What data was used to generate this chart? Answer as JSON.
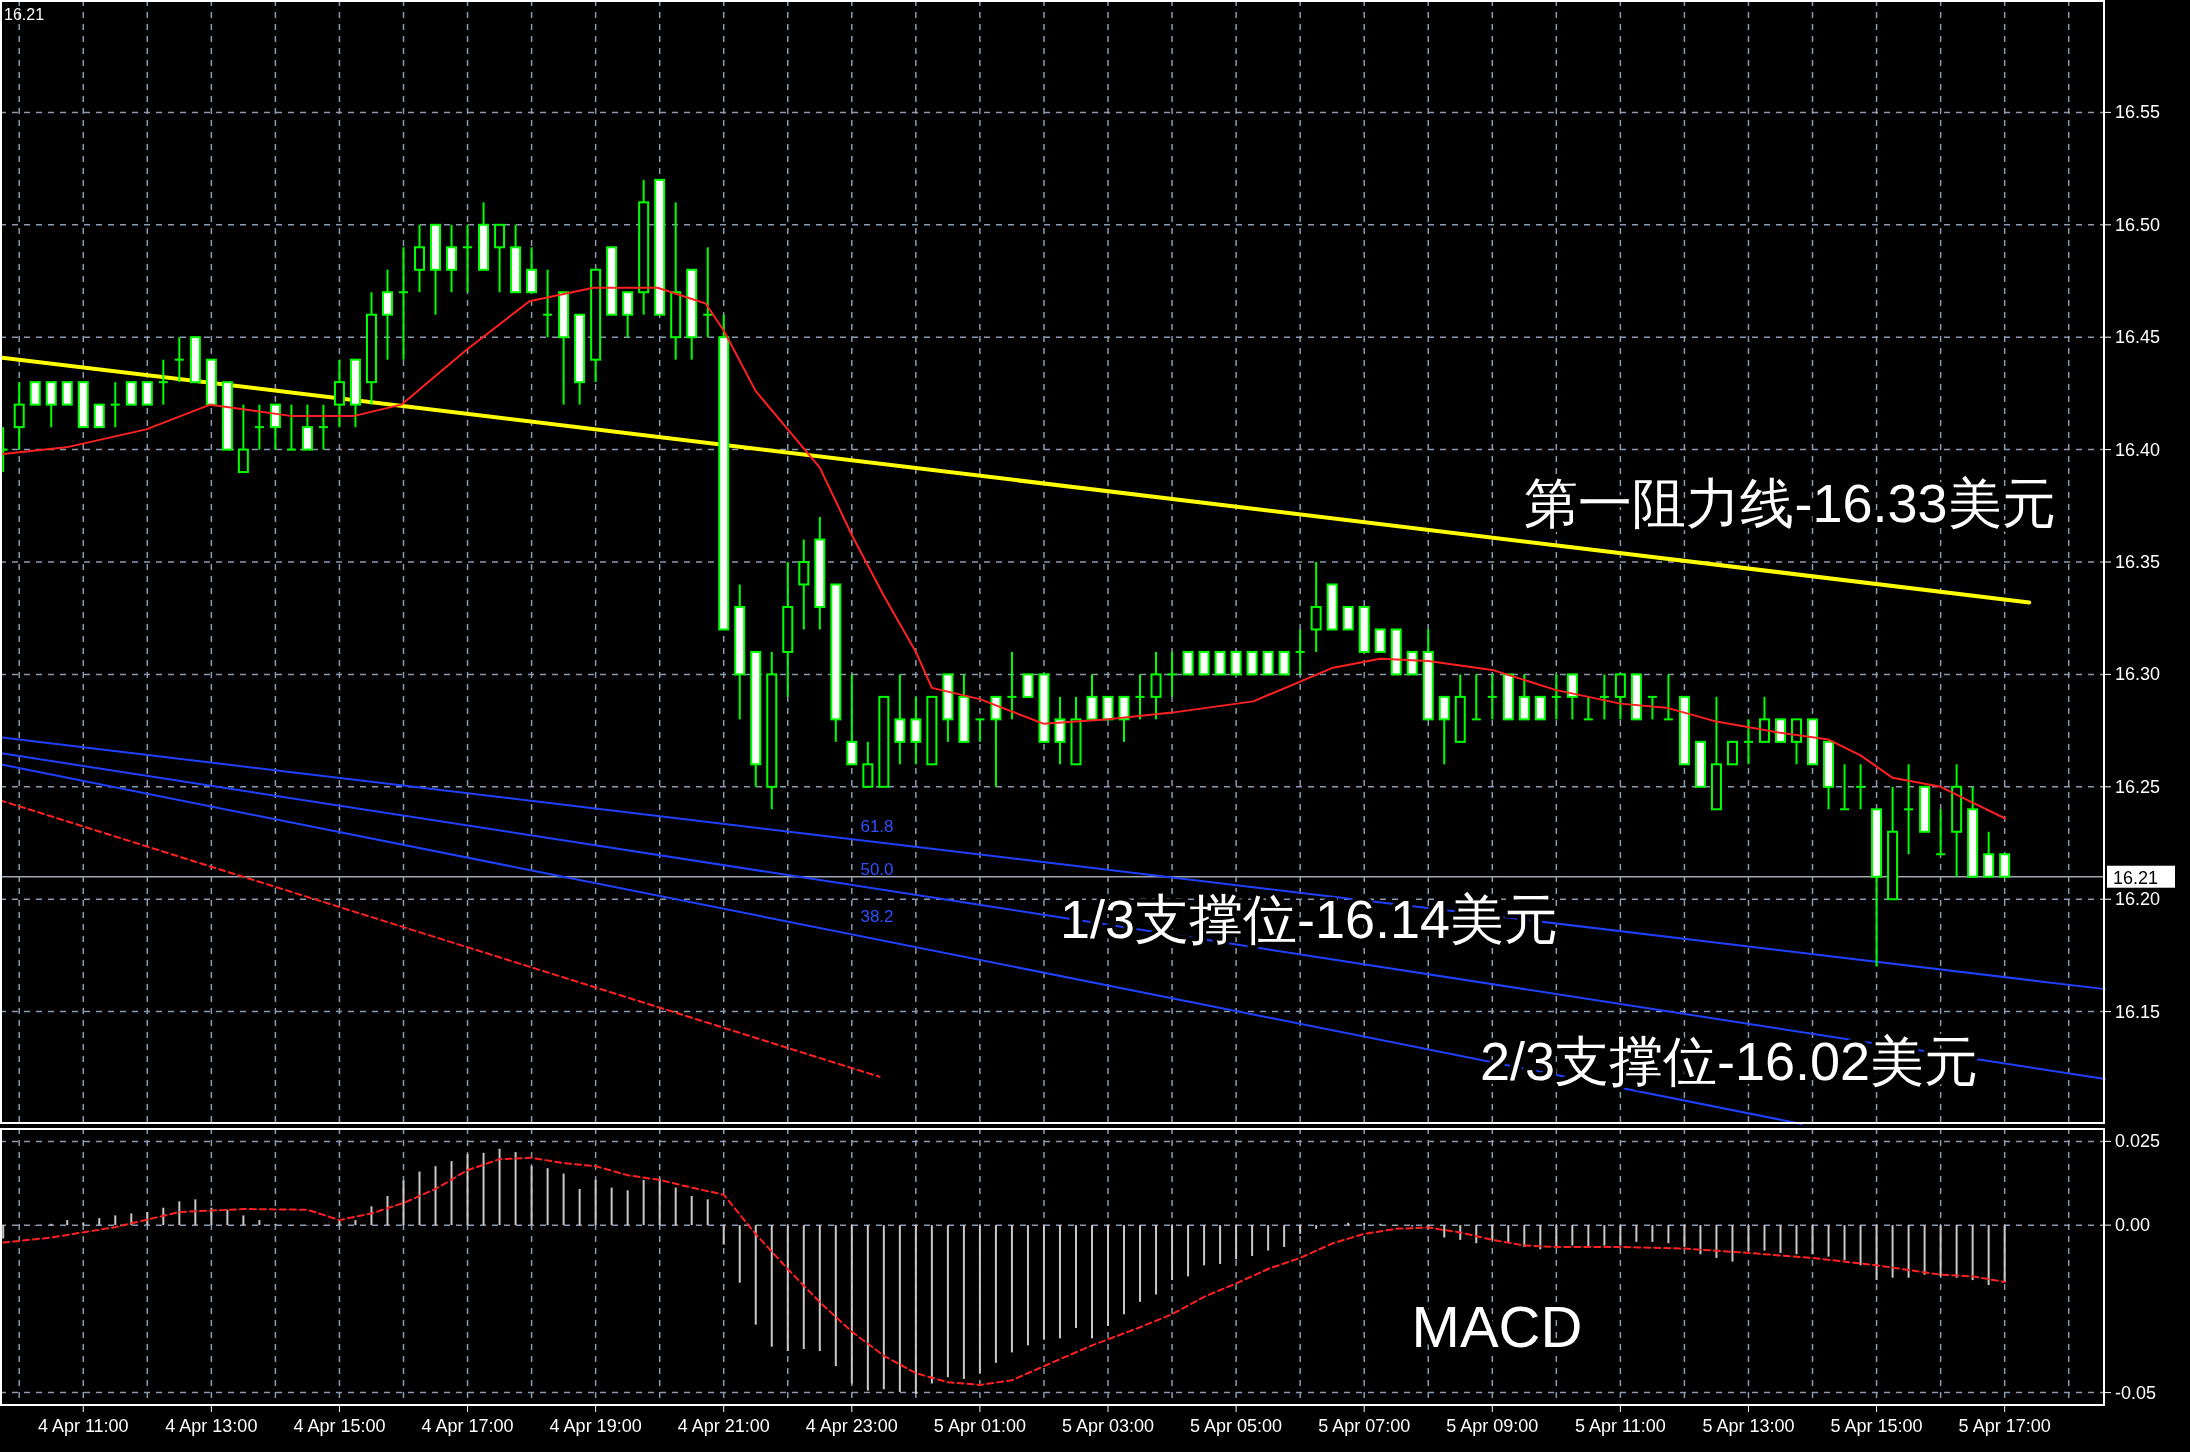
{
  "chart_data": [
    {
      "type": "candlestick",
      "tick_labels": "y",
      "grid": true,
      "xlim": [
        "--04-04T09:42",
        "--04-05T18:34"
      ],
      "ylim": [
        16.1,
        16.6
      ],
      "xticks": [
        "--04-04T10:00",
        "--04-04T11:00",
        "--04-04T12:00",
        "--04-04T13:00",
        "--04-04T14:00",
        "--04-04T15:00",
        "--04-04T16:00",
        "--04-04T17:00",
        "--04-04T18:00",
        "--04-04T19:00",
        "--04-04T20:00",
        "--04-04T21:00",
        "--04-04T22:00",
        "--04-04T23:00",
        "--04-05T00:00",
        "--04-05T01:00",
        "--04-05T02:00",
        "--04-05T03:00",
        "--04-05T04:00",
        "--04-05T05:00",
        "--04-05T06:00",
        "--04-05T07:00",
        "--04-05T08:00",
        "--04-05T09:00",
        "--04-05T10:00",
        "--04-05T11:00",
        "--04-05T12:00",
        "--04-05T13:00",
        "--04-05T14:00",
        "--04-05T15:00",
        "--04-05T16:00",
        "--04-05T17:00",
        "--04-05T18:00"
      ],
      "yticks": [
        16.15,
        {
          "value": 16.2,
          "label": "16.20"
        },
        16.25,
        {
          "value": 16.3,
          "label": "16.30"
        },
        16.35,
        {
          "value": 16.4,
          "label": "16.40"
        },
        16.45,
        {
          "value": 16.5,
          "label": "16.50"
        },
        16.55
      ],
      "x": [
        "--04-04T09:45",
        "--04-04T10:00",
        "--04-04T10:15",
        "--04-04T10:30",
        "--04-04T10:45",
        "--04-04T11:00",
        "--04-04T11:15",
        "--04-04T11:30",
        "--04-04T11:45",
        "--04-04T12:00",
        "--04-04T12:15",
        "--04-04T12:30",
        "--04-04T12:45",
        "--04-04T13:00",
        "--04-04T13:15",
        "--04-04T13:30",
        "--04-04T13:45",
        "--04-04T14:00",
        "--04-04T14:15",
        "--04-04T14:30",
        "--04-04T14:45",
        "--04-04T15:00",
        "--04-04T15:15",
        "--04-04T15:30",
        "--04-04T15:45",
        "--04-04T16:00",
        "--04-04T16:15",
        "--04-04T16:30",
        "--04-04T16:45",
        "--04-04T17:00",
        "--04-04T17:15",
        "--04-04T17:30",
        "--04-04T17:45",
        "--04-04T18:00",
        "--04-04T18:15",
        "--04-04T18:30",
        "--04-04T18:45",
        "--04-04T19:00",
        "--04-04T19:15",
        "--04-04T19:30",
        "--04-04T19:45",
        "--04-04T20:00",
        "--04-04T20:15",
        "--04-04T20:30",
        "--04-04T20:45",
        "--04-04T21:00",
        "--04-04T21:15",
        "--04-04T21:30",
        "--04-04T21:45",
        "--04-04T22:00",
        "--04-04T22:15",
        "--04-04T22:30",
        "--04-04T22:45",
        "--04-04T23:00",
        "--04-04T23:15",
        "--04-04T23:30",
        "--04-04T23:45",
        "--04-05T00:00",
        "--04-05T00:15",
        "--04-05T00:30",
        "--04-05T00:45",
        "--04-05T01:00",
        "--04-05T01:15",
        "--04-05T01:30",
        "--04-05T01:45",
        "--04-05T02:00",
        "--04-05T02:15",
        "--04-05T02:30",
        "--04-05T02:45",
        "--04-05T03:00",
        "--04-05T03:15",
        "--04-05T03:30",
        "--04-05T03:45",
        "--04-05T04:00",
        "--04-05T04:15",
        "--04-05T04:30",
        "--04-05T04:45",
        "--04-05T05:00",
        "--04-05T05:15",
        "--04-05T05:30",
        "--04-05T05:45",
        "--04-05T06:00",
        "--04-05T06:15",
        "--04-05T06:30",
        "--04-05T06:45",
        "--04-05T07:00",
        "--04-05T07:15",
        "--04-05T07:30",
        "--04-05T07:45",
        "--04-05T08:00",
        "--04-05T08:15",
        "--04-05T08:30",
        "--04-05T08:45",
        "--04-05T09:00",
        "--04-05T09:15",
        "--04-05T09:30",
        "--04-05T09:45",
        "--04-05T10:00",
        "--04-05T10:15",
        "--04-05T10:30",
        "--04-05T10:45",
        "--04-05T11:00",
        "--04-05T11:15",
        "--04-05T11:30",
        "--04-05T11:45",
        "--04-05T12:00",
        "--04-05T12:15",
        "--04-05T12:30",
        "--04-05T12:45",
        "--04-05T13:00",
        "--04-05T13:15",
        "--04-05T13:30",
        "--04-05T13:45",
        "--04-05T14:00",
        "--04-05T14:15",
        "--04-05T14:30",
        "--04-05T14:45",
        "--04-05T15:00",
        "--04-05T15:15",
        "--04-05T15:30",
        "--04-05T15:45",
        "--04-05T16:00",
        "--04-05T16:15",
        "--04-05T16:30",
        "--04-05T16:45",
        "--04-05T17:00"
      ],
      "ohlc": [
        [
          16.4,
          16.41,
          16.39,
          16.4
        ],
        [
          16.41,
          16.43,
          16.4,
          16.42
        ],
        [
          16.43,
          16.43,
          16.42,
          16.42
        ],
        [
          16.43,
          16.43,
          16.41,
          16.42
        ],
        [
          16.43,
          16.43,
          16.42,
          16.42
        ],
        [
          16.43,
          16.43,
          16.41,
          16.41
        ],
        [
          16.42,
          16.42,
          16.41,
          16.41
        ],
        [
          16.42,
          16.43,
          16.41,
          16.42
        ],
        [
          16.43,
          16.43,
          16.42,
          16.42
        ],
        [
          16.43,
          16.43,
          16.42,
          16.42
        ],
        [
          16.43,
          16.44,
          16.42,
          16.43
        ],
        [
          16.44,
          16.45,
          16.43,
          16.44
        ],
        [
          16.45,
          16.45,
          16.43,
          16.43
        ],
        [
          16.44,
          16.44,
          16.42,
          16.42
        ],
        [
          16.43,
          16.43,
          16.4,
          16.4
        ],
        [
          16.39,
          16.42,
          16.39,
          16.4
        ],
        [
          16.41,
          16.42,
          16.4,
          16.41
        ],
        [
          16.42,
          16.42,
          16.4,
          16.41
        ],
        [
          16.4,
          16.42,
          16.4,
          16.4
        ],
        [
          16.41,
          16.42,
          16.4,
          16.4
        ],
        [
          16.41,
          16.42,
          16.4,
          16.41
        ],
        [
          16.42,
          16.44,
          16.41,
          16.43
        ],
        [
          16.44,
          16.44,
          16.41,
          16.42
        ],
        [
          16.43,
          16.47,
          16.42,
          16.46
        ],
        [
          16.47,
          16.48,
          16.44,
          16.46
        ],
        [
          16.47,
          16.49,
          16.44,
          16.47
        ],
        [
          16.48,
          16.5,
          16.47,
          16.49
        ],
        [
          16.5,
          16.5,
          16.46,
          16.48
        ],
        [
          16.49,
          16.5,
          16.47,
          16.48
        ],
        [
          16.49,
          16.5,
          16.47,
          16.49
        ],
        [
          16.5,
          16.51,
          16.48,
          16.48
        ],
        [
          16.49,
          16.5,
          16.47,
          16.5
        ],
        [
          16.49,
          16.5,
          16.47,
          16.47
        ],
        [
          16.48,
          16.49,
          16.47,
          16.47
        ],
        [
          16.46,
          16.48,
          16.45,
          16.46
        ],
        [
          16.47,
          16.47,
          16.42,
          16.45
        ],
        [
          16.46,
          16.46,
          16.42,
          16.43
        ],
        [
          16.44,
          16.48,
          16.43,
          16.48
        ],
        [
          16.49,
          16.49,
          16.46,
          16.46
        ],
        [
          16.47,
          16.47,
          16.45,
          16.46
        ],
        [
          16.47,
          16.52,
          16.46,
          16.51
        ],
        [
          16.52,
          16.52,
          16.46,
          16.46
        ],
        [
          16.45,
          16.51,
          16.44,
          16.47
        ],
        [
          16.48,
          16.48,
          16.44,
          16.45
        ],
        [
          16.46,
          16.49,
          16.45,
          16.46
        ],
        [
          16.45,
          16.46,
          16.32,
          16.32
        ],
        [
          16.33,
          16.34,
          16.28,
          16.3
        ],
        [
          16.31,
          16.31,
          16.25,
          16.26
        ],
        [
          16.25,
          16.31,
          16.24,
          16.3
        ],
        [
          16.31,
          16.35,
          16.29,
          16.33
        ],
        [
          16.34,
          16.36,
          16.32,
          16.35
        ],
        [
          16.36,
          16.37,
          16.32,
          16.33
        ],
        [
          16.34,
          16.34,
          16.27,
          16.28
        ],
        [
          16.27,
          16.3,
          16.26,
          16.26
        ],
        [
          16.25,
          16.27,
          16.25,
          16.26
        ],
        [
          16.25,
          16.29,
          16.25,
          16.29
        ],
        [
          16.28,
          16.3,
          16.26,
          16.27
        ],
        [
          16.28,
          16.29,
          16.26,
          16.27
        ],
        [
          16.26,
          16.29,
          16.26,
          16.29
        ],
        [
          16.3,
          16.3,
          16.27,
          16.28
        ],
        [
          16.29,
          16.3,
          16.27,
          16.27
        ],
        [
          16.28,
          16.28,
          16.27,
          16.28
        ],
        [
          16.29,
          16.29,
          16.25,
          16.28
        ],
        [
          16.29,
          16.31,
          16.28,
          16.29
        ],
        [
          16.3,
          16.3,
          16.29,
          16.29
        ],
        [
          16.3,
          16.3,
          16.27,
          16.27
        ],
        [
          16.28,
          16.29,
          16.26,
          16.27
        ],
        [
          16.26,
          16.29,
          16.26,
          16.28
        ],
        [
          16.29,
          16.3,
          16.28,
          16.28
        ],
        [
          16.29,
          16.29,
          16.28,
          16.28
        ],
        [
          16.29,
          16.29,
          16.27,
          16.28
        ],
        [
          16.29,
          16.3,
          16.28,
          16.29
        ],
        [
          16.29,
          16.31,
          16.28,
          16.3
        ],
        [
          16.3,
          16.31,
          16.29,
          16.3
        ],
        [
          16.31,
          16.31,
          16.3,
          16.3
        ],
        [
          16.31,
          16.31,
          16.3,
          16.3
        ],
        [
          16.31,
          16.31,
          16.3,
          16.3
        ],
        [
          16.31,
          16.31,
          16.3,
          16.3
        ],
        [
          16.31,
          16.31,
          16.3,
          16.3
        ],
        [
          16.31,
          16.31,
          16.3,
          16.3
        ],
        [
          16.31,
          16.31,
          16.3,
          16.3
        ],
        [
          16.31,
          16.32,
          16.3,
          16.31
        ],
        [
          16.32,
          16.35,
          16.31,
          16.33
        ],
        [
          16.34,
          16.34,
          16.32,
          16.32
        ],
        [
          16.33,
          16.33,
          16.32,
          16.32
        ],
        [
          16.33,
          16.33,
          16.31,
          16.31
        ],
        [
          16.32,
          16.32,
          16.31,
          16.31
        ],
        [
          16.32,
          16.32,
          16.3,
          16.3
        ],
        [
          16.31,
          16.31,
          16.3,
          16.3
        ],
        [
          16.31,
          16.32,
          16.28,
          16.28
        ],
        [
          16.29,
          16.29,
          16.26,
          16.28
        ],
        [
          16.27,
          16.3,
          16.27,
          16.29
        ],
        [
          16.28,
          16.3,
          16.28,
          16.28
        ],
        [
          16.29,
          16.3,
          16.28,
          16.29
        ],
        [
          16.3,
          16.3,
          16.28,
          16.28
        ],
        [
          16.29,
          16.3,
          16.28,
          16.28
        ],
        [
          16.29,
          16.29,
          16.28,
          16.28
        ],
        [
          16.29,
          16.3,
          16.28,
          16.29
        ],
        [
          16.3,
          16.3,
          16.28,
          16.29
        ],
        [
          16.28,
          16.29,
          16.28,
          16.28
        ],
        [
          16.29,
          16.3,
          16.28,
          16.29
        ],
        [
          16.29,
          16.3,
          16.28,
          16.3
        ],
        [
          16.3,
          16.3,
          16.28,
          16.28
        ],
        [
          16.29,
          16.29,
          16.28,
          16.29
        ],
        [
          16.28,
          16.3,
          16.28,
          16.28
        ],
        [
          16.29,
          16.29,
          16.26,
          16.26
        ],
        [
          16.27,
          16.27,
          16.25,
          16.25
        ],
        [
          16.24,
          16.29,
          16.24,
          16.26
        ],
        [
          16.26,
          16.27,
          16.26,
          16.27
        ],
        [
          16.27,
          16.28,
          16.26,
          16.27
        ],
        [
          16.27,
          16.29,
          16.27,
          16.28
        ],
        [
          16.28,
          16.28,
          16.27,
          16.27
        ],
        [
          16.27,
          16.28,
          16.26,
          16.28
        ],
        [
          16.28,
          16.28,
          16.26,
          16.26
        ],
        [
          16.27,
          16.27,
          16.24,
          16.25
        ],
        [
          16.24,
          16.26,
          16.24,
          16.24
        ],
        [
          16.25,
          16.26,
          16.24,
          16.25
        ],
        [
          16.24,
          16.24,
          16.17,
          16.21
        ],
        [
          16.2,
          16.25,
          16.2,
          16.23
        ],
        [
          16.24,
          16.26,
          16.22,
          16.24
        ],
        [
          16.25,
          16.25,
          16.23,
          16.23
        ],
        [
          16.22,
          16.24,
          16.22,
          16.22
        ],
        [
          16.23,
          16.26,
          16.21,
          16.25
        ],
        [
          16.24,
          16.25,
          16.21,
          16.21
        ],
        [
          16.22,
          16.23,
          16.21,
          16.21
        ],
        [
          16.22,
          16.22,
          16.21,
          16.21
        ]
      ],
      "series": [
        {
          "type": "line",
          "color": "#ff2020",
          "x": [
            "--04-04T09:45",
            "--04-04T10:44",
            "--04-04T11:59",
            "--04-04T12:59",
            "--04-04T14:14",
            "--04-04T15:14",
            "--04-04T15:58",
            "--04-04T16:58",
            "--04-04T17:58",
            "--04-04T18:58",
            "--04-04T19:58",
            "--04-04T20:43",
            "--04-04T21:00",
            "--04-04T21:30",
            "--04-04T22:00",
            "--04-04T22:30",
            "--04-04T23:00",
            "--04-04T23:30",
            "--04-05T00:00",
            "--04-05T00:15",
            "--04-05T01:00",
            "--04-05T02:00",
            "--04-05T03:00",
            "--04-05T04:00",
            "--04-05T05:16",
            "--04-05T06:31",
            "--04-05T07:15",
            "--04-05T08:00",
            "--04-05T09:00",
            "--04-05T10:00",
            "--04-05T11:00",
            "--04-05T11:45",
            "--04-05T12:30",
            "--04-05T13:30",
            "--04-05T14:15",
            "--04-05T14:45",
            "--04-05T15:15",
            "--04-05T16:00",
            "--04-05T16:30",
            "--04-05T17:00"
          ],
          "values": [
            16.398,
            16.401,
            16.409,
            16.42,
            16.415,
            16.415,
            16.42,
            16.444,
            16.466,
            16.472,
            16.472,
            16.465,
            16.453,
            16.426,
            16.409,
            16.392,
            16.362,
            16.335,
            16.31,
            16.294,
            16.289,
            16.278,
            16.28,
            16.283,
            16.288,
            16.303,
            16.307,
            16.306,
            16.302,
            16.293,
            16.287,
            16.285,
            16.279,
            16.274,
            16.271,
            16.264,
            16.254,
            16.25,
            16.243,
            16.236
          ]
        },
        {
          "type": "line",
          "color": "#ffff00",
          "x": [
            "--04-04T09:42",
            "--04-05T17:23"
          ],
          "values": [
            16.441,
            16.332
          ]
        },
        {
          "type": "line",
          "color": "#2040ff",
          "x": [
            "--04-04T09:42",
            "--04-05T18:34"
          ],
          "values": [
            16.272,
            16.16
          ]
        },
        {
          "type": "line",
          "color": "#2040ff",
          "x": [
            "--04-04T09:42",
            "--04-05T18:34"
          ],
          "values": [
            16.265,
            16.12
          ]
        },
        {
          "type": "line",
          "color": "#2040ff",
          "x": [
            "--04-04T09:42",
            "--04-05T13:50"
          ],
          "values": [
            16.26,
            16.1
          ]
        },
        {
          "type": "line",
          "color": "#ff2020",
          "line_style": "dashed",
          "x": [
            "--04-04T09:42",
            "--04-04T23:26"
          ],
          "values": [
            16.244,
            16.121
          ]
        }
      ],
      "ref_lines": [
        {
          "axis": "y",
          "value": 16.21,
          "label": "16.21",
          "color": "#a0a8b0"
        }
      ],
      "annotations": [
        "16.21",
        "第一阻力线-16.33美元",
        "1/3支撑位-16.14美元",
        "2/3支撑位-16.02美元",
        "61.8",
        "50.0",
        "38.2"
      ]
    },
    {
      "type": "bar",
      "grid": true,
      "xlim": [
        "--04-04T09:42",
        "--04-05T18:34"
      ],
      "ylim": [
        -0.054,
        0.029
      ],
      "xticks": [
        {
          "value": "--04-04T10:00",
          "label": null
        },
        {
          "value": "--04-04T11:00",
          "label": "4 Apr 11:00"
        },
        {
          "value": "--04-04T12:00",
          "label": null
        },
        {
          "value": "--04-04T13:00",
          "label": "4 Apr 13:00"
        },
        {
          "value": "--04-04T14:00",
          "label": null
        },
        {
          "value": "--04-04T15:00",
          "label": "4 Apr 15:00"
        },
        {
          "value": "--04-04T16:00",
          "label": null
        },
        {
          "value": "--04-04T17:00",
          "label": "4 Apr 17:00"
        },
        {
          "value": "--04-04T18:00",
          "label": null
        },
        {
          "value": "--04-04T19:00",
          "label": "4 Apr 19:00"
        },
        {
          "value": "--04-04T20:00",
          "label": null
        },
        {
          "value": "--04-04T21:00",
          "label": "4 Apr 21:00"
        },
        {
          "value": "--04-04T22:00",
          "label": null
        },
        {
          "value": "--04-04T23:00",
          "label": "4 Apr 23:00"
        },
        {
          "value": "--04-05T00:00",
          "label": null
        },
        {
          "value": "--04-05T01:00",
          "label": "5 Apr 01:00"
        },
        {
          "value": "--04-05T02:00",
          "label": null
        },
        {
          "value": "--04-05T03:00",
          "label": "5 Apr 03:00"
        },
        {
          "value": "--04-05T04:00",
          "label": null
        },
        {
          "value": "--04-05T05:00",
          "label": "5 Apr 05:00"
        },
        {
          "value": "--04-05T06:00",
          "label": null
        },
        {
          "value": "--04-05T07:00",
          "label": "5 Apr 07:00"
        },
        {
          "value": "--04-05T08:00",
          "label": null
        },
        {
          "value": "--04-05T09:00",
          "label": "5 Apr 09:00"
        },
        {
          "value": "--04-05T10:00",
          "label": null
        },
        {
          "value": "--04-05T11:00",
          "label": "5 Apr 11:00"
        },
        {
          "value": "--04-05T12:00",
          "label": null
        },
        {
          "value": "--04-05T13:00",
          "label": "5 Apr 13:00"
        },
        {
          "value": "--04-05T14:00",
          "label": null
        },
        {
          "value": "--04-05T15:00",
          "label": "5 Apr 15:00"
        },
        {
          "value": "--04-05T16:00",
          "label": null
        },
        {
          "value": "--04-05T17:00",
          "label": "5 Apr 17:00"
        },
        {
          "value": "--04-05T18:00",
          "label": null
        }
      ],
      "yticks": [
        -0.05,
        {
          "value": 0,
          "label": "0.00"
        },
        0.025
      ],
      "x": [
        "--04-04T09:45",
        "--04-04T10:00",
        "--04-04T10:15",
        "--04-04T10:30",
        "--04-04T10:45",
        "--04-04T11:00",
        "--04-04T11:15",
        "--04-04T11:30",
        "--04-04T11:45",
        "--04-04T12:00",
        "--04-04T12:15",
        "--04-04T12:30",
        "--04-04T12:45",
        "--04-04T13:00",
        "--04-04T13:15",
        "--04-04T13:30",
        "--04-04T13:45",
        "--04-04T14:00",
        "--04-04T14:15",
        "--04-04T14:30",
        "--04-04T14:45",
        "--04-04T15:00",
        "--04-04T15:15",
        "--04-04T15:30",
        "--04-04T15:45",
        "--04-04T16:00",
        "--04-04T16:15",
        "--04-04T16:30",
        "--04-04T16:45",
        "--04-04T17:00",
        "--04-04T17:15",
        "--04-04T17:30",
        "--04-04T17:45",
        "--04-04T18:00",
        "--04-04T18:15",
        "--04-04T18:30",
        "--04-04T18:45",
        "--04-04T19:00",
        "--04-04T19:15",
        "--04-04T19:30",
        "--04-04T19:45",
        "--04-04T20:00",
        "--04-04T20:15",
        "--04-04T20:30",
        "--04-04T20:45",
        "--04-04T21:00",
        "--04-04T21:15",
        "--04-04T21:30",
        "--04-04T21:45",
        "--04-04T22:00",
        "--04-04T22:15",
        "--04-04T22:30",
        "--04-04T22:45",
        "--04-04T23:00",
        "--04-04T23:15",
        "--04-04T23:30",
        "--04-04T23:45",
        "--04-05T00:00",
        "--04-05T00:15",
        "--04-05T00:30",
        "--04-05T00:45",
        "--04-05T01:00",
        "--04-05T01:15",
        "--04-05T01:30",
        "--04-05T01:45",
        "--04-05T02:00",
        "--04-05T02:15",
        "--04-05T02:30",
        "--04-05T02:45",
        "--04-05T03:00",
        "--04-05T03:15",
        "--04-05T03:30",
        "--04-05T03:45",
        "--04-05T04:00",
        "--04-05T04:15",
        "--04-05T04:30",
        "--04-05T04:45",
        "--04-05T05:00",
        "--04-05T05:15",
        "--04-05T05:30",
        "--04-05T05:45",
        "--04-05T06:00",
        "--04-05T06:15",
        "--04-05T06:30",
        "--04-05T06:45",
        "--04-05T07:00",
        "--04-05T07:15",
        "--04-05T07:30",
        "--04-05T07:45",
        "--04-05T08:00",
        "--04-05T08:15",
        "--04-05T08:30",
        "--04-05T08:45",
        "--04-05T09:00",
        "--04-05T09:15",
        "--04-05T09:30",
        "--04-05T09:45",
        "--04-05T10:00",
        "--04-05T10:15",
        "--04-05T10:30",
        "--04-05T10:45",
        "--04-05T11:00",
        "--04-05T11:15",
        "--04-05T11:30",
        "--04-05T11:45",
        "--04-05T12:00",
        "--04-05T12:15",
        "--04-05T12:30",
        "--04-05T12:45",
        "--04-05T13:00",
        "--04-05T13:15",
        "--04-05T13:30",
        "--04-05T13:45",
        "--04-05T14:00",
        "--04-05T14:15",
        "--04-05T14:30",
        "--04-05T14:45",
        "--04-05T15:00",
        "--04-05T15:15",
        "--04-05T15:30",
        "--04-05T15:45",
        "--04-05T16:00",
        "--04-05T16:15",
        "--04-05T16:30",
        "--04-05T16:45",
        "--04-05T17:00"
      ],
      "series": [
        {
          "type": "bar",
          "color": "#c8c8c8",
          "values": [
            -0.004,
            0,
            0,
            0.0004,
            0.0015,
            0.0008,
            0.0021,
            0.0029,
            0.0035,
            0.0039,
            0.0052,
            0.0071,
            0.0077,
            0.0052,
            0.0046,
            0.0029,
            0.0015,
            0.0004,
            0,
            0,
            0,
            0.0015,
            0.0015,
            0.0056,
            0.0087,
            0.0133,
            0.016,
            0.0176,
            0.0191,
            0.0212,
            0.0216,
            0.0228,
            0.0218,
            0.0176,
            0.017,
            0.0154,
            0.0108,
            0.0135,
            0.0112,
            0.0104,
            0.0135,
            0.0139,
            0.0112,
            0.0087,
            0.0077,
            -0.0058,
            -0.0172,
            -0.0297,
            -0.0363,
            -0.0376,
            -0.037,
            -0.0376,
            -0.0421,
            -0.0473,
            -0.0494,
            -0.049,
            -0.0498,
            -0.0504,
            -0.0473,
            -0.0454,
            -0.0459,
            -0.0442,
            -0.0411,
            -0.038,
            -0.0359,
            -0.0342,
            -0.0338,
            -0.0307,
            -0.0338,
            -0.0301,
            -0.0266,
            -0.0229,
            -0.0207,
            -0.0164,
            -0.0153,
            -0.012,
            -0.0116,
            -0.0102,
            -0.0092,
            -0.0076,
            -0.0065,
            -0.0026,
            -0.0011,
            0,
            0.0007,
            0.0007,
            0.0004,
            0,
            -0.0004,
            -0.0011,
            -0.0037,
            -0.0044,
            -0.0054,
            -0.0044,
            -0.0054,
            -0.0065,
            -0.0072,
            -0.0065,
            -0.0061,
            -0.0065,
            -0.0061,
            -0.0061,
            -0.005,
            -0.005,
            -0.0054,
            -0.0065,
            -0.0087,
            -0.0098,
            -0.0109,
            -0.0076,
            -0.0076,
            -0.0083,
            -0.0087,
            -0.0087,
            -0.0094,
            -0.0105,
            -0.012,
            -0.0164,
            -0.0157,
            -0.0157,
            -0.0148,
            -0.0153,
            -0.0157,
            -0.0164,
            -0.0179,
            -0.017
          ]
        },
        {
          "type": "line",
          "color": "#ff2020",
          "line_style": "dashed",
          "x": [
            "--04-04T09:45",
            "--04-04T10:30",
            "--04-04T11:30",
            "--04-04T12:30",
            "--04-04T13:30",
            "--04-04T14:30",
            "--04-04T15:00",
            "--04-04T15:30",
            "--04-04T16:00",
            "--04-04T16:30",
            "--04-04T17:00",
            "--04-04T17:30",
            "--04-04T18:00",
            "--04-04T18:30",
            "--04-04T19:00",
            "--04-04T19:30",
            "--04-04T20:00",
            "--04-04T20:30",
            "--04-04T21:00",
            "--04-04T21:30",
            "--04-04T22:00",
            "--04-04T22:30",
            "--04-04T23:00",
            "--04-04T23:30",
            "--04-05T00:00",
            "--04-05T00:30",
            "--04-05T01:00",
            "--04-05T01:30",
            "--04-05T02:00",
            "--04-05T02:45",
            "--04-05T03:30",
            "--04-05T04:00",
            "--04-05T04:30",
            "--04-05T05:00",
            "--04-05T05:30",
            "--04-05T06:00",
            "--04-05T06:30",
            "--04-05T07:00",
            "--04-05T07:30",
            "--04-05T08:00",
            "--04-05T08:30",
            "--04-05T09:00",
            "--04-05T09:30",
            "--04-05T10:00",
            "--04-05T11:00",
            "--04-05T12:00",
            "--04-05T13:00",
            "--04-05T14:00",
            "--04-05T15:00",
            "--04-05T16:00",
            "--04-05T16:30",
            "--04-05T17:00"
          ],
          "values": [
            -0.0052,
            -0.0037,
            -0.0006,
            0.0039,
            0.0048,
            0.0046,
            0.0015,
            0.0035,
            0.0066,
            0.0108,
            0.0164,
            0.0197,
            0.0201,
            0.0185,
            0.0176,
            0.0149,
            0.0135,
            0.0112,
            0.0091,
            -0.0027,
            -0.0131,
            -0.023,
            -0.0318,
            -0.039,
            -0.0442,
            -0.0469,
            -0.0477,
            -0.0463,
            -0.0421,
            -0.0359,
            -0.0305,
            -0.0266,
            -0.0214,
            -0.0174,
            -0.0131,
            -0.0098,
            -0.0055,
            -0.0026,
            -0.0011,
            -0.0007,
            -0.0022,
            -0.0044,
            -0.0061,
            -0.0065,
            -0.0065,
            -0.007,
            -0.0083,
            -0.0098,
            -0.012,
            -0.0148,
            -0.0153,
            -0.017
          ]
        }
      ],
      "annotations": [
        "MACD"
      ]
    }
  ]
}
